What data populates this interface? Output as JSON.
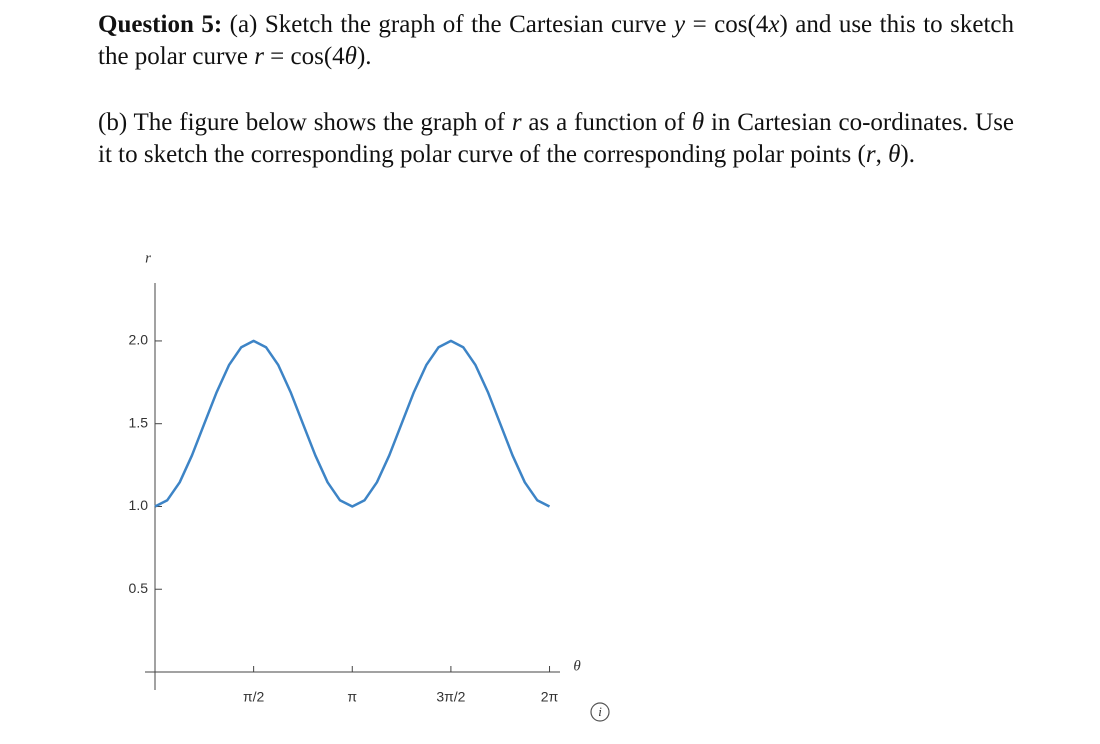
{
  "question": {
    "label": "Question 5:",
    "part_a": [
      "(a) Sketch the graph of the Cartesian curve ",
      "y",
      " = cos(4",
      "x",
      ") and use this to sketch the polar curve ",
      "r",
      " = cos(4",
      "θ",
      ")."
    ],
    "part_b": [
      "(b) The figure below shows the graph of ",
      "r",
      " as a function of ",
      "θ",
      " in Cartesian co-ordinates. Use it to sketch the corresponding polar curve of the corresponding polar points (",
      "r",
      ", ",
      "θ",
      ")."
    ]
  },
  "info_icon": "i",
  "chart_data": {
    "type": "line",
    "y_label": "r",
    "x_label": "θ",
    "x": [
      0,
      0.196,
      0.393,
      0.589,
      0.785,
      0.982,
      1.178,
      1.374,
      1.571,
      1.767,
      1.963,
      2.16,
      2.356,
      2.553,
      2.749,
      2.945,
      3.142,
      3.338,
      3.534,
      3.731,
      3.927,
      4.123,
      4.32,
      4.516,
      4.712,
      4.909,
      5.105,
      5.301,
      5.498,
      5.694,
      5.89,
      6.087,
      6.283
    ],
    "series": [
      {
        "name": "r",
        "color": "#3d84c6",
        "values": [
          1,
          1.038,
          1.146,
          1.309,
          1.5,
          1.691,
          1.854,
          1.962,
          2,
          1.962,
          1.854,
          1.691,
          1.5,
          1.309,
          1.146,
          1.038,
          1,
          1.038,
          1.146,
          1.309,
          1.5,
          1.691,
          1.854,
          1.962,
          2,
          1.962,
          1.854,
          1.691,
          1.5,
          1.309,
          1.146,
          1.038,
          1
        ]
      }
    ],
    "xlim": [
      0,
      6.45
    ],
    "ylim": [
      0,
      2.35
    ],
    "xticks": [
      {
        "value": 1.5708,
        "label": "π/2"
      },
      {
        "value": 3.1416,
        "label": "π"
      },
      {
        "value": 4.7124,
        "label": "3π/2"
      },
      {
        "value": 6.2832,
        "label": "2π"
      }
    ],
    "yticks": [
      0.5,
      {
        "value": 1,
        "label": "1.0"
      },
      1.5,
      {
        "value": 2,
        "label": "2.0"
      }
    ]
  }
}
